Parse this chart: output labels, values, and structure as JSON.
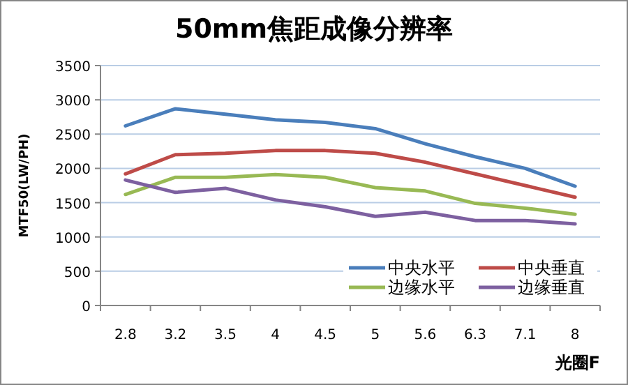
{
  "chart_data": {
    "type": "line",
    "title": "50mm焦距成像分辨率",
    "xlabel": "光圈F",
    "ylabel": "MTF50(LW/PH)",
    "categories": [
      "2.8",
      "3.2",
      "3.5",
      "4",
      "4.5",
      "5",
      "5.6",
      "6.3",
      "7.1",
      "8"
    ],
    "ylim": [
      0,
      3500
    ],
    "yticks": [
      0,
      500,
      1000,
      1500,
      2000,
      2500,
      3000,
      3500
    ],
    "grid": "y",
    "legend": "bottom right",
    "marker": "none",
    "line_style": "solid",
    "series": [
      {
        "name": "中央水平",
        "color": "#4a7ebb",
        "values": [
          2620,
          2870,
          2790,
          2710,
          2670,
          2580,
          2360,
          2170,
          2000,
          1740
        ]
      },
      {
        "name": "中央垂直",
        "color": "#be4b48",
        "values": [
          1920,
          2200,
          2220,
          2260,
          2260,
          2220,
          2090,
          1920,
          1750,
          1580
        ]
      },
      {
        "name": "边缘水平",
        "color": "#98b954",
        "values": [
          1620,
          1870,
          1870,
          1910,
          1870,
          1720,
          1670,
          1490,
          1420,
          1330
        ]
      },
      {
        "name": "边缘垂直",
        "color": "#7d60a0",
        "values": [
          1830,
          1650,
          1710,
          1540,
          1440,
          1300,
          1360,
          1240,
          1240,
          1190
        ]
      }
    ]
  }
}
